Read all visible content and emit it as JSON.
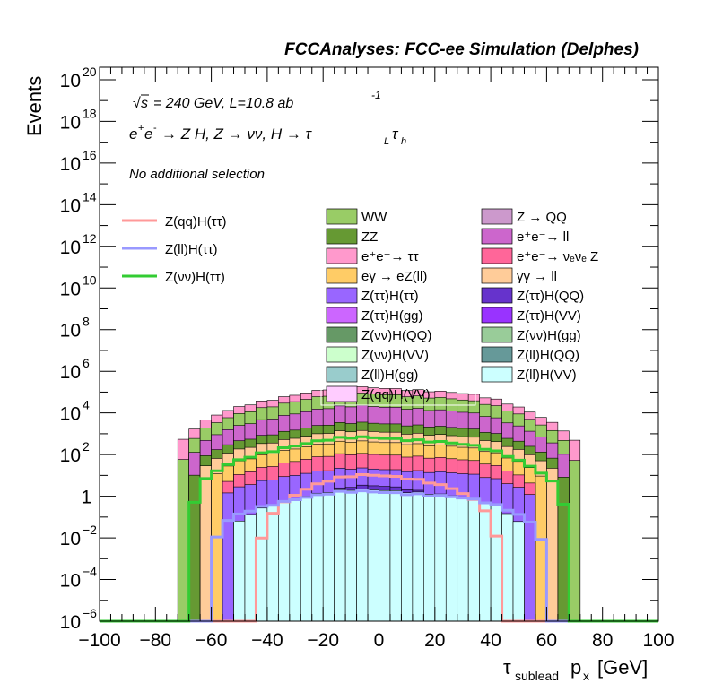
{
  "header": {
    "title": "FCCAnalyses: FCC-ee Simulation (Delphes)"
  },
  "annotations": {
    "energy_prefix": "s",
    "energy_text": "= 240 GeV, L=10.8 ab",
    "lumi_exp": "-1",
    "process_a": "e",
    "process_b": "e",
    "process_c": "→ Z H, Z  → νν, H → τ",
    "process_sub1": "L",
    "process_d": "τ",
    "process_sub2": "h",
    "selection": "No additional selection"
  },
  "legend": {
    "signals": [
      {
        "label": "Z(qq)H(ττ)",
        "color": "#ff9999"
      },
      {
        "label": "Z(ll)H(ττ)",
        "color": "#9999ff"
      },
      {
        "label": "Z(νν)H(ττ)",
        "color": "#33cc33"
      }
    ],
    "backgrounds_col1": [
      {
        "label": "WW",
        "color": "#99cc66"
      },
      {
        "label": "ZZ",
        "color": "#669933"
      },
      {
        "label": "e⁺e⁻→ ττ",
        "color": "#ff99cc"
      },
      {
        "label": "eγ → eZ(ll)",
        "color": "#ffcc66"
      },
      {
        "label": "Z(ττ)H(ττ)",
        "color": "#9966ff"
      },
      {
        "label": "Z(ττ)H(gg)",
        "color": "#cc66ff"
      },
      {
        "label": "Z(νν)H(QQ)",
        "color": "#669966"
      },
      {
        "label": "Z(νν)H(VV)",
        "color": "#ccffcc"
      },
      {
        "label": "Z(ll)H(gg)",
        "color": "#99cccc"
      },
      {
        "label": "Z(qq)H(VV)",
        "color": "#ffccff"
      }
    ],
    "backgrounds_col2": [
      {
        "label": "Z → QQ",
        "color": "#cc99cc"
      },
      {
        "label": "e⁺e⁻→ ll",
        "color": "#cc66cc"
      },
      {
        "label": "e⁺e⁻→ νₑνₑ Z",
        "color": "#ff6699"
      },
      {
        "label": "γγ → ll",
        "color": "#ffcc99"
      },
      {
        "label": "Z(ττ)H(QQ)",
        "color": "#6633cc"
      },
      {
        "label": "Z(ττ)H(VV)",
        "color": "#9933ff"
      },
      {
        "label": "Z(νν)H(gg)",
        "color": "#99cc99"
      },
      {
        "label": "Z(ll)H(QQ)",
        "color": "#669999"
      },
      {
        "label": "Z(ll)H(VV)",
        "color": "#ccffff"
      }
    ]
  },
  "chart_data": {
    "type": "histogram-stacked",
    "xlabel": "τ",
    "xlabel_sub": "sublead",
    "xlabel_rest": "p",
    "xlabel_sub2": "x",
    "xlabel_unit": "[GeV]",
    "ylabel": "Events",
    "x_range": [
      -100,
      100
    ],
    "y_range_log10": [
      -6,
      20.6
    ],
    "log_y": true,
    "x_ticks": [
      {
        "value": -100,
        "label": "−100"
      },
      {
        "value": -80,
        "label": "−80"
      },
      {
        "value": -60,
        "label": "−60"
      },
      {
        "value": -40,
        "label": "−40"
      },
      {
        "value": -20,
        "label": "−20"
      },
      {
        "value": 0,
        "label": "0"
      },
      {
        "value": 20,
        "label": "20"
      },
      {
        "value": 40,
        "label": "40"
      },
      {
        "value": 60,
        "label": "60"
      },
      {
        "value": 80,
        "label": "80"
      },
      {
        "value": 100,
        "label": "100"
      }
    ],
    "y_ticks": [
      {
        "exp": -6,
        "base": "10",
        "sup": "−6"
      },
      {
        "exp": -4,
        "base": "10",
        "sup": "−4"
      },
      {
        "exp": -2,
        "base": "10",
        "sup": "−2"
      },
      {
        "exp": 0,
        "base": "1",
        "sup": ""
      },
      {
        "exp": 2,
        "base": "10",
        "sup": "2"
      },
      {
        "exp": 4,
        "base": "10",
        "sup": "4"
      },
      {
        "exp": 6,
        "base": "10",
        "sup": "6"
      },
      {
        "exp": 8,
        "base": "10",
        "sup": "8"
      },
      {
        "exp": 10,
        "base": "10",
        "sup": "10"
      },
      {
        "exp": 12,
        "base": "10",
        "sup": "12"
      },
      {
        "exp": 14,
        "base": "10",
        "sup": "14"
      },
      {
        "exp": 16,
        "base": "10",
        "sup": "16"
      },
      {
        "exp": 18,
        "base": "10",
        "sup": "18"
      },
      {
        "exp": 20,
        "base": "10",
        "sup": "20"
      }
    ],
    "stack_layers": [
      {
        "name": "Z(ll)H(VV)",
        "color": "#ccffff",
        "halfwidth": 52,
        "peak_log10": 0.3,
        "edge_log10": -1.8
      },
      {
        "name": "Z(ll)H(QQ)",
        "color": "#669999",
        "halfwidth": 36,
        "peak_log10": -0.5,
        "edge_log10": -2.5
      },
      {
        "name": "Z(ττ)H(gg)",
        "color": "#cc66ff",
        "halfwidth": 28,
        "peak_log10": 0.1,
        "edge_log10": -1.5
      },
      {
        "name": "Z(ττ)H(QQ)",
        "color": "#6633cc",
        "halfwidth": 30,
        "peak_log10": 0.5,
        "edge_log10": -1.2
      },
      {
        "name": "Z(ττ)H(ττ)",
        "color": "#9966ff",
        "halfwidth": 56,
        "peak_log10": 1.3,
        "edge_log10": -0.3
      },
      {
        "name": "e⁺e⁻→ νₑνₑ Z",
        "color": "#ff6699",
        "halfwidth": 56,
        "peak_log10": 2.0,
        "edge_log10": 0.2
      },
      {
        "name": "eγ → eZ(ll)",
        "color": "#ffcc66",
        "halfwidth": 60,
        "peak_log10": 2.6,
        "edge_log10": 0.5
      },
      {
        "name": "γγ → ll",
        "color": "#ffcc99",
        "halfwidth": 64,
        "peak_log10": 3.1,
        "edge_log10": 0.8
      },
      {
        "name": "ZZ",
        "color": "#669933",
        "halfwidth": 66,
        "peak_log10": 3.5,
        "edge_log10": 1.0
      },
      {
        "name": "e⁺e⁻→ ll",
        "color": "#cc66cc",
        "halfwidth": 68,
        "peak_log10": 4.3,
        "edge_log10": 1.4
      },
      {
        "name": "WW",
        "color": "#99cc66",
        "halfwidth": 70,
        "peak_log10": 4.9,
        "edge_log10": 1.7
      },
      {
        "name": "e⁺e⁻→ ττ",
        "color": "#ff99cc",
        "halfwidth": 72,
        "peak_log10": 5.2,
        "edge_log10": 1.9
      }
    ],
    "signal_lines": [
      {
        "name": "Z(qq)H(ττ)",
        "color": "#ff9999",
        "halfwidth": 42,
        "peak_log10": 1.0,
        "edge_log10": -2.0
      },
      {
        "name": "Z(ll)H(ττ)",
        "color": "#9999ff",
        "halfwidth": 58,
        "peak_log10": 0.2,
        "edge_log10": -2.0
      },
      {
        "name": "Z(νν)H(ττ)",
        "color": "#33cc33",
        "halfwidth": 66,
        "peak_log10": 2.8,
        "edge_log10": -0.3
      }
    ]
  }
}
